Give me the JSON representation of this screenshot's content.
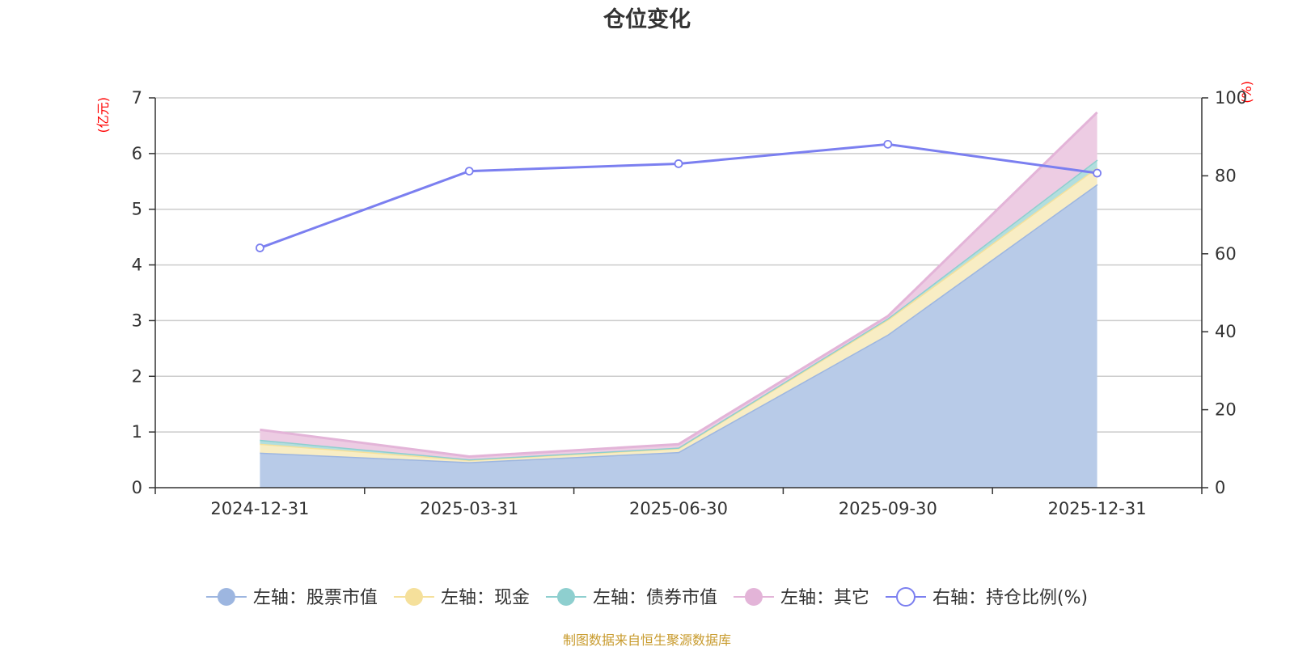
{
  "chart_data": {
    "type": "area",
    "title": "仓位变化",
    "categories": [
      "2024-12-31",
      "2025-03-31",
      "2025-06-30",
      "2025-09-30",
      "2025-12-31"
    ],
    "y_left": {
      "unit": "(亿元)",
      "range": [
        0,
        7
      ],
      "ticks": [
        0,
        1,
        2,
        3,
        4,
        5,
        6,
        7
      ]
    },
    "y_right": {
      "unit": "(%)",
      "range": [
        0,
        100
      ],
      "ticks": [
        0,
        20,
        40,
        60,
        80,
        100
      ]
    },
    "stacked_series": [
      {
        "name": "左轴：股票市值",
        "axis": "left",
        "values": [
          0.63,
          0.46,
          0.64,
          2.75,
          5.45
        ],
        "color": "#9db6e0",
        "fill": "#b8cbe8"
      },
      {
        "name": "左轴：现金",
        "axis": "left",
        "values": [
          0.16,
          0.04,
          0.07,
          0.27,
          0.3
        ],
        "color": "#f5e09b",
        "fill": "#f8edc4"
      },
      {
        "name": "左轴：债券市值",
        "axis": "left",
        "values": [
          0.07,
          0.01,
          0.01,
          0.02,
          0.14
        ],
        "color": "#8ecfcf",
        "fill": "#b2dede"
      },
      {
        "name": "左轴：其它",
        "axis": "left",
        "values": [
          0.18,
          0.05,
          0.06,
          0.04,
          0.85
        ],
        "color": "#e3b4d8",
        "fill": "#edcce3"
      }
    ],
    "line_series": [
      {
        "name": "右轴：持仓比例(%)",
        "axis": "right",
        "values": [
          61.5,
          81.2,
          83.1,
          88.1,
          80.7
        ],
        "color": "#7b7ff0"
      }
    ],
    "grid": true,
    "legend_position": "bottom"
  },
  "source_note": "制图数据来自恒生聚源数据库"
}
